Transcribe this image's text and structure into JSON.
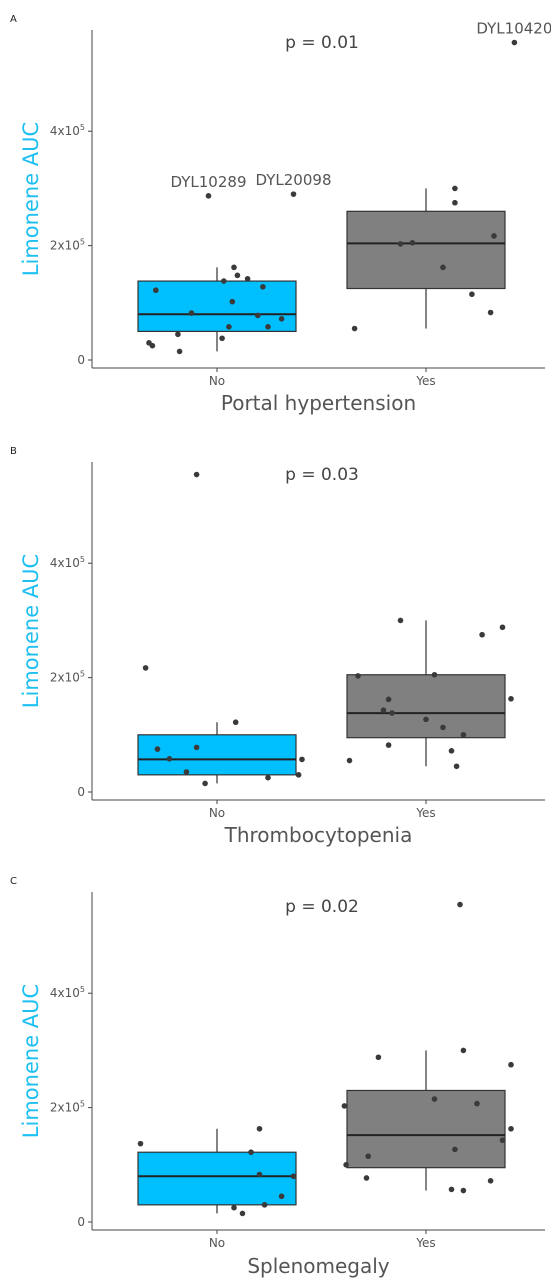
{
  "chart_data": [
    {
      "type": "box",
      "panel_label": "A",
      "xlabel": "Portal hypertension",
      "ylabel": "Limonene AUC",
      "p_value_label": "p = 0.01",
      "ylim": [
        0,
        570000
      ],
      "y_ticks": [
        {
          "value": 0,
          "base": "0",
          "exp": ""
        },
        {
          "value": 200000,
          "base": "2x10",
          "exp": "5"
        },
        {
          "value": 400000,
          "base": "4x10",
          "exp": "5"
        }
      ],
      "categories": [
        "No",
        "Yes"
      ],
      "colors": [
        "#00bfff",
        "#808080"
      ],
      "boxes": [
        {
          "q1": 50000,
          "median": 80000,
          "q3": 138000,
          "whisker_low": 15000,
          "whisker_high": 162000
        },
        {
          "q1": 125000,
          "median": 204000,
          "q3": 260000,
          "whisker_low": 55000,
          "whisker_high": 300000
        }
      ],
      "points": [
        [
          {
            "x": -0.4,
            "y": 30000
          },
          {
            "x": -0.38,
            "y": 25000
          },
          {
            "x": -0.36,
            "y": 122000
          },
          {
            "x": -0.23,
            "y": 45000
          },
          {
            "x": -0.22,
            "y": 15000
          },
          {
            "x": -0.15,
            "y": 82000
          },
          {
            "x": -0.05,
            "y": 287000
          },
          {
            "x": 0.03,
            "y": 38000
          },
          {
            "x": 0.04,
            "y": 138000
          },
          {
            "x": 0.07,
            "y": 58000
          },
          {
            "x": 0.09,
            "y": 102000
          },
          {
            "x": 0.1,
            "y": 162000
          },
          {
            "x": 0.12,
            "y": 148000
          },
          {
            "x": 0.18,
            "y": 142000
          },
          {
            "x": 0.24,
            "y": 78000
          },
          {
            "x": 0.27,
            "y": 128000
          },
          {
            "x": 0.3,
            "y": 58000
          },
          {
            "x": 0.38,
            "y": 72000
          },
          {
            "x": 0.45,
            "y": 290000
          }
        ],
        [
          {
            "x": -0.42,
            "y": 55000
          },
          {
            "x": -0.15,
            "y": 203000
          },
          {
            "x": -0.08,
            "y": 205000
          },
          {
            "x": 0.1,
            "y": 162000
          },
          {
            "x": 0.17,
            "y": 300000
          },
          {
            "x": 0.17,
            "y": 275000
          },
          {
            "x": 0.27,
            "y": 115000
          },
          {
            "x": 0.38,
            "y": 83000
          },
          {
            "x": 0.4,
            "y": 217000
          },
          {
            "x": 0.52,
            "y": 555000
          }
        ]
      ],
      "annotations": [
        {
          "text": "DYL10289",
          "x": -0.05,
          "y": 287000
        },
        {
          "text": "DYL20098",
          "x": 0.45,
          "y": 290000
        },
        {
          "text": "DYL10420",
          "x": 0.52,
          "y": 555000
        }
      ]
    },
    {
      "type": "box",
      "panel_label": "B",
      "xlabel": "Thrombocytopenia",
      "ylabel": "Limonene AUC",
      "p_value_label": "p = 0.03",
      "ylim": [
        0,
        570000
      ],
      "y_ticks": [
        {
          "value": 0,
          "base": "0",
          "exp": ""
        },
        {
          "value": 200000,
          "base": "2x10",
          "exp": "5"
        },
        {
          "value": 400000,
          "base": "4x10",
          "exp": "5"
        }
      ],
      "categories": [
        "No",
        "Yes"
      ],
      "colors": [
        "#00bfff",
        "#808080"
      ],
      "boxes": [
        {
          "q1": 30000,
          "median": 57000,
          "q3": 100000,
          "whisker_low": 15000,
          "whisker_high": 122000
        },
        {
          "q1": 95000,
          "median": 138000,
          "q3": 205000,
          "whisker_low": 45000,
          "whisker_high": 300000
        }
      ],
      "points": [
        [
          {
            "x": -0.42,
            "y": 217000
          },
          {
            "x": -0.35,
            "y": 75000
          },
          {
            "x": -0.28,
            "y": 58000
          },
          {
            "x": -0.18,
            "y": 35000
          },
          {
            "x": -0.12,
            "y": 78000
          },
          {
            "x": -0.12,
            "y": 555000
          },
          {
            "x": -0.07,
            "y": 15000
          },
          {
            "x": 0.11,
            "y": 122000
          },
          {
            "x": 0.3,
            "y": 25000
          },
          {
            "x": 0.48,
            "y": 30000
          },
          {
            "x": 0.5,
            "y": 57000
          }
        ],
        [
          {
            "x": -0.45,
            "y": 55000
          },
          {
            "x": -0.4,
            "y": 203000
          },
          {
            "x": -0.25,
            "y": 143000
          },
          {
            "x": -0.22,
            "y": 82000
          },
          {
            "x": -0.22,
            "y": 162000
          },
          {
            "x": -0.2,
            "y": 138000
          },
          {
            "x": -0.15,
            "y": 300000
          },
          {
            "x": 0.0,
            "y": 127000
          },
          {
            "x": 0.05,
            "y": 205000
          },
          {
            "x": 0.1,
            "y": 113000
          },
          {
            "x": 0.15,
            "y": 72000
          },
          {
            "x": 0.18,
            "y": 45000
          },
          {
            "x": 0.22,
            "y": 100000
          },
          {
            "x": 0.33,
            "y": 275000
          },
          {
            "x": 0.45,
            "y": 288000
          },
          {
            "x": 0.5,
            "y": 163000
          }
        ]
      ],
      "annotations": []
    },
    {
      "type": "box",
      "panel_label": "C",
      "xlabel": "Splenomegaly",
      "ylabel": "Limonene AUC",
      "p_value_label": "p = 0.02",
      "ylim": [
        0,
        570000
      ],
      "y_ticks": [
        {
          "value": 0,
          "base": "0",
          "exp": ""
        },
        {
          "value": 200000,
          "base": "2x10",
          "exp": "5"
        },
        {
          "value": 400000,
          "base": "4x10",
          "exp": "5"
        }
      ],
      "categories": [
        "No",
        "Yes"
      ],
      "colors": [
        "#00bfff",
        "#808080"
      ],
      "boxes": [
        {
          "q1": 30000,
          "median": 80000,
          "q3": 122000,
          "whisker_low": 15000,
          "whisker_high": 163000
        },
        {
          "q1": 95000,
          "median": 152000,
          "q3": 230000,
          "whisker_low": 55000,
          "whisker_high": 300000
        }
      ],
      "points": [
        [
          {
            "x": -0.45,
            "y": 137000
          },
          {
            "x": 0.1,
            "y": 25000
          },
          {
            "x": 0.15,
            "y": 15000
          },
          {
            "x": 0.2,
            "y": 122000
          },
          {
            "x": 0.25,
            "y": 163000
          },
          {
            "x": 0.25,
            "y": 83000
          },
          {
            "x": 0.28,
            "y": 30000
          },
          {
            "x": 0.38,
            "y": 45000
          },
          {
            "x": 0.45,
            "y": 80000
          }
        ],
        [
          {
            "x": -0.48,
            "y": 203000
          },
          {
            "x": -0.47,
            "y": 100000
          },
          {
            "x": -0.35,
            "y": 77000
          },
          {
            "x": -0.34,
            "y": 115000
          },
          {
            "x": -0.28,
            "y": 288000
          },
          {
            "x": 0.05,
            "y": 215000
          },
          {
            "x": 0.15,
            "y": 57000
          },
          {
            "x": 0.17,
            "y": 127000
          },
          {
            "x": 0.2,
            "y": 555000
          },
          {
            "x": 0.22,
            "y": 300000
          },
          {
            "x": 0.22,
            "y": 55000
          },
          {
            "x": 0.3,
            "y": 207000
          },
          {
            "x": 0.38,
            "y": 72000
          },
          {
            "x": 0.45,
            "y": 143000
          },
          {
            "x": 0.5,
            "y": 163000
          },
          {
            "x": 0.5,
            "y": 275000
          }
        ]
      ],
      "annotations": []
    }
  ]
}
